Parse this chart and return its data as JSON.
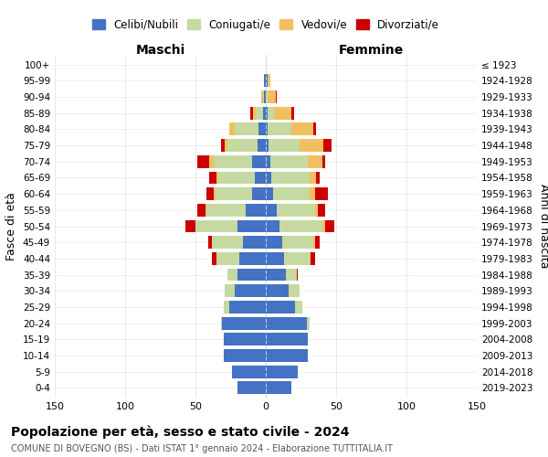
{
  "age_groups": [
    "0-4",
    "5-9",
    "10-14",
    "15-19",
    "20-24",
    "25-29",
    "30-34",
    "35-39",
    "40-44",
    "45-49",
    "50-54",
    "55-59",
    "60-64",
    "65-69",
    "70-74",
    "75-79",
    "80-84",
    "85-89",
    "90-94",
    "95-99",
    "100+"
  ],
  "birth_years": [
    "2019-2023",
    "2014-2018",
    "2009-2013",
    "2004-2008",
    "1999-2003",
    "1994-1998",
    "1989-1993",
    "1984-1988",
    "1979-1983",
    "1974-1978",
    "1969-1973",
    "1964-1968",
    "1959-1963",
    "1954-1958",
    "1949-1953",
    "1944-1948",
    "1939-1943",
    "1934-1938",
    "1929-1933",
    "1924-1928",
    "≤ 1923"
  ],
  "maschi": {
    "celibi": [
      20,
      24,
      30,
      30,
      31,
      26,
      22,
      20,
      19,
      16,
      20,
      14,
      10,
      8,
      10,
      6,
      5,
      2,
      1,
      1,
      0
    ],
    "coniugati": [
      0,
      0,
      0,
      0,
      1,
      4,
      7,
      7,
      16,
      22,
      30,
      28,
      26,
      26,
      27,
      21,
      17,
      5,
      1,
      0,
      0
    ],
    "vedovi": [
      0,
      0,
      0,
      0,
      0,
      0,
      0,
      0,
      0,
      0,
      0,
      1,
      1,
      1,
      3,
      2,
      4,
      2,
      1,
      0,
      0
    ],
    "divorziati": [
      0,
      0,
      0,
      0,
      0,
      0,
      0,
      0,
      3,
      3,
      7,
      6,
      5,
      5,
      9,
      3,
      0,
      2,
      0,
      0,
      0
    ]
  },
  "femmine": {
    "nubili": [
      18,
      23,
      30,
      30,
      29,
      21,
      16,
      14,
      13,
      12,
      10,
      8,
      5,
      4,
      3,
      2,
      1,
      1,
      0,
      1,
      0
    ],
    "coniugate": [
      0,
      0,
      0,
      0,
      2,
      5,
      8,
      8,
      18,
      22,
      30,
      27,
      26,
      27,
      27,
      22,
      17,
      5,
      1,
      0,
      0
    ],
    "vedove": [
      0,
      0,
      0,
      0,
      0,
      0,
      0,
      0,
      1,
      1,
      2,
      2,
      4,
      5,
      10,
      17,
      16,
      12,
      6,
      2,
      0
    ],
    "divorziate": [
      0,
      0,
      0,
      0,
      0,
      0,
      0,
      1,
      3,
      3,
      7,
      5,
      9,
      2,
      2,
      6,
      2,
      2,
      1,
      0,
      0
    ]
  },
  "colors": {
    "celibi": "#4472c4",
    "coniugati": "#c5d9a0",
    "vedovi": "#f0c060",
    "divorziati": "#cc0000"
  },
  "title": "Popolazione per età, sesso e stato civile - 2024",
  "subtitle": "COMUNE DI BOVEGNO (BS) - Dati ISTAT 1° gennaio 2024 - Elaborazione TUTTITALIA.IT",
  "xlabel_left": "Maschi",
  "xlabel_right": "Femmine",
  "ylabel_left": "Fasce di età",
  "ylabel_right": "Anni di nascita",
  "xlim": 150,
  "legend_labels": [
    "Celibi/Nubili",
    "Coniugati/e",
    "Vedovi/e",
    "Divorziati/e"
  ]
}
